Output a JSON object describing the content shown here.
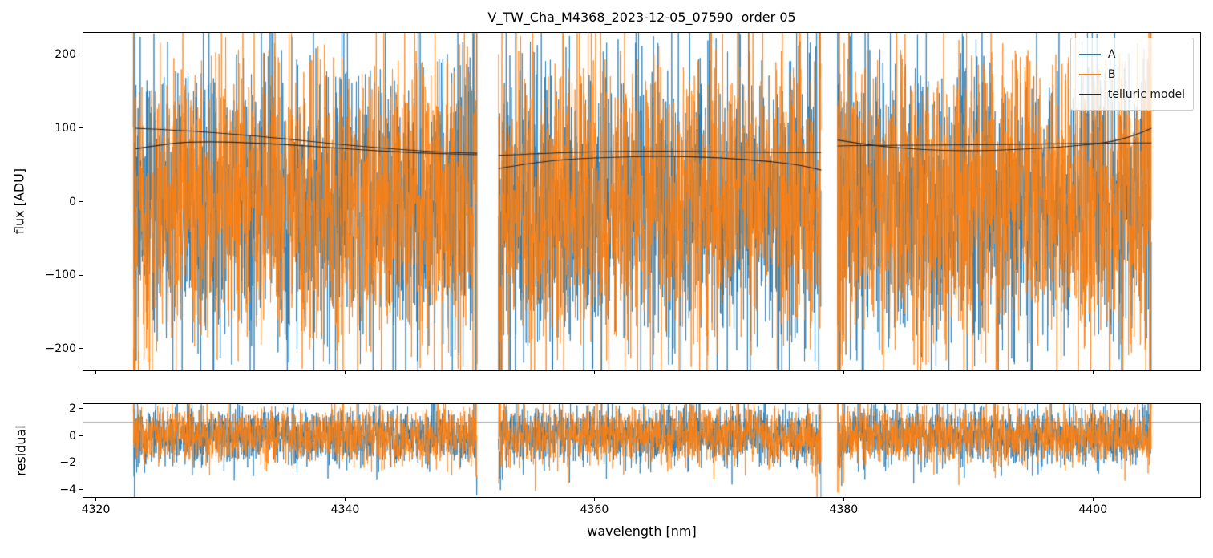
{
  "title": "V_TW_Cha_M4368_2023-12-05_07590  order 05",
  "xlabel": "wavelength [nm]",
  "chart_data": [
    {
      "type": "line",
      "panel": "flux",
      "ylabel": "flux [ADU]",
      "xlim": [
        4319,
        4408.6
      ],
      "ylim": [
        -230,
        230
      ],
      "xticks": [
        4320,
        4340,
        4360,
        4380,
        4400
      ],
      "yticks": [
        -200,
        -100,
        0,
        100,
        200
      ],
      "y_tick_labels": [
        "−200",
        "−100",
        "0",
        "100",
        "200"
      ],
      "grid": false,
      "segments": [
        [
          4323.0,
          4350.6
        ],
        [
          4352.3,
          4378.2
        ],
        [
          4379.5,
          4404.7
        ]
      ],
      "legend": {
        "loc": "upper right",
        "entries": [
          {
            "label": "A",
            "color": "#1f77b4"
          },
          {
            "label": "B",
            "color": "#ff7f0e"
          },
          {
            "label": "telluric model",
            "color": "#2a2a2a"
          }
        ]
      },
      "series": [
        {
          "name": "A",
          "color": "#1f77b4",
          "kind": "gaussian-noise",
          "mean": 0,
          "std": 100,
          "seed": 1234,
          "sample_step_nm": 0.02,
          "edge_spike_boost": 2.5,
          "spike_fraction": 0.006,
          "spike_scale": 1.6
        },
        {
          "name": "B",
          "color": "#ff7f0e",
          "kind": "gaussian-noise",
          "mean": 0,
          "std": 100,
          "seed": 5678,
          "sample_step_nm": 0.02,
          "edge_spike_boost": 2.5,
          "spike_fraction": 0.006,
          "spike_scale": 1.6
        },
        {
          "name": "telluric model",
          "color": "#2a2a2a",
          "kind": "smooth-curves",
          "curves": [
            [
              [
                4323.2,
                100
              ],
              [
                4327,
                97
              ],
              [
                4331,
                92
              ],
              [
                4335,
                86
              ],
              [
                4339,
                79
              ],
              [
                4343,
                73
              ],
              [
                4347,
                68
              ],
              [
                4350.6,
                66
              ]
            ],
            [
              [
                4323.2,
                72
              ],
              [
                4326,
                80
              ],
              [
                4329,
                82
              ],
              [
                4333,
                80
              ],
              [
                4337,
                76
              ],
              [
                4341,
                71
              ],
              [
                4345,
                67
              ],
              [
                4348.5,
                65
              ],
              [
                4350.6,
                64
              ]
            ],
            [
              [
                4352.3,
                63
              ],
              [
                4356,
                66
              ],
              [
                4360,
                68
              ],
              [
                4365,
                69
              ],
              [
                4370,
                68
              ],
              [
                4374,
                67
              ],
              [
                4378.2,
                67
              ]
            ],
            [
              [
                4352.3,
                45
              ],
              [
                4355,
                53
              ],
              [
                4358,
                58
              ],
              [
                4362,
                61
              ],
              [
                4366,
                62
              ],
              [
                4370,
                60
              ],
              [
                4374,
                55
              ],
              [
                4376.5,
                50
              ],
              [
                4378.2,
                43
              ]
            ],
            [
              [
                4379.5,
                76
              ],
              [
                4383,
                77
              ],
              [
                4388,
                77
              ],
              [
                4393,
                78
              ],
              [
                4398,
                79
              ],
              [
                4402,
                80
              ],
              [
                4404.7,
                80
              ]
            ],
            [
              [
                4379.5,
                84
              ],
              [
                4382,
                77
              ],
              [
                4386,
                71
              ],
              [
                4390,
                69
              ],
              [
                4394,
                71
              ],
              [
                4398,
                75
              ],
              [
                4401,
                80
              ],
              [
                4403,
                88
              ],
              [
                4404.7,
                100
              ]
            ]
          ]
        }
      ]
    },
    {
      "type": "line",
      "panel": "residual",
      "ylabel": "residual",
      "xlim": [
        4319,
        4408.6
      ],
      "ylim": [
        -4.55,
        2.35
      ],
      "xticks": [
        4320,
        4340,
        4360,
        4380,
        4400
      ],
      "x_tick_labels": [
        "4320",
        "4340",
        "4360",
        "4380",
        "4400"
      ],
      "yticks": [
        2,
        0,
        -2,
        -4
      ],
      "y_tick_labels": [
        "2",
        "0",
        "−2",
        "−4"
      ],
      "grid": false,
      "hline": {
        "y": 1,
        "color": "#9a9a9a"
      },
      "segments": [
        [
          4323.0,
          4350.6
        ],
        [
          4352.3,
          4378.2
        ],
        [
          4379.5,
          4404.7
        ]
      ],
      "series": [
        {
          "name": "A",
          "color": "#1f77b4",
          "kind": "gaussian-noise",
          "mean": 0,
          "std": 1.05,
          "seed": 4321,
          "sample_step_nm": 0.02,
          "edge_spike_boost": 2.0,
          "spike_fraction": 0.006,
          "spike_scale": 2.0
        },
        {
          "name": "B",
          "color": "#ff7f0e",
          "kind": "gaussian-noise",
          "mean": 0,
          "std": 1.05,
          "seed": 8765,
          "sample_step_nm": 0.02,
          "edge_spike_boost": 2.0,
          "spike_fraction": 0.006,
          "spike_scale": 2.0
        }
      ]
    }
  ]
}
